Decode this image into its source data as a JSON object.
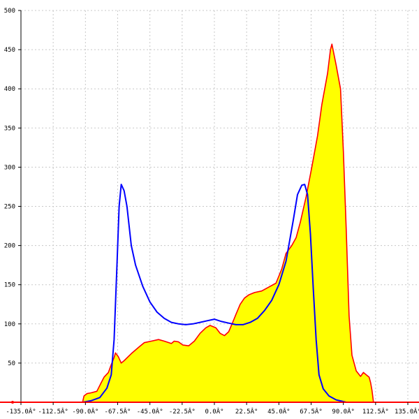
{
  "chart_data": {
    "type": "area",
    "title": "",
    "xlabel": "",
    "ylabel": "",
    "xlim": [
      -135,
      135
    ],
    "ylim": [
      0,
      500
    ],
    "grid": true,
    "x_ticks": [
      -135,
      -112.5,
      -90,
      -67.5,
      -45,
      -22.5,
      0,
      22.5,
      45,
      67.5,
      90,
      112.5,
      135
    ],
    "x_tick_labels": [
      "-135.0Â°",
      "-112.5Â°",
      "-90.0Â°",
      "-67.5Â°",
      "-45.0Â°",
      "-22.5Â°",
      "0.0Â°",
      "22.5Â°",
      "45.0Â°",
      "67.5Â°",
      "90.0Â°",
      "112.5Â°",
      "135.0Â°"
    ],
    "y_ticks": [
      50,
      100,
      150,
      200,
      250,
      300,
      350,
      400,
      450,
      500
    ],
    "y_tick_labels": [
      "50",
      "100",
      "150",
      "200",
      "250",
      "300",
      "350",
      "400",
      "450",
      "500"
    ],
    "series": [
      {
        "style": "filled-area",
        "line_color": "#ff0000",
        "fill_color": "#ffff00",
        "points": [
          [
            -92,
            0
          ],
          [
            -91,
            8
          ],
          [
            -89,
            11
          ],
          [
            -86,
            12
          ],
          [
            -82,
            14
          ],
          [
            -79,
            25
          ],
          [
            -77,
            32
          ],
          [
            -74,
            38
          ],
          [
            -72,
            48
          ],
          [
            -70,
            57
          ],
          [
            -69,
            63
          ],
          [
            -67,
            58
          ],
          [
            -65,
            50
          ],
          [
            -63,
            53
          ],
          [
            -58,
            62
          ],
          [
            -53,
            70
          ],
          [
            -49,
            76
          ],
          [
            -44,
            78
          ],
          [
            -39,
            80
          ],
          [
            -35,
            78
          ],
          [
            -30,
            75
          ],
          [
            -28,
            78
          ],
          [
            -25,
            77
          ],
          [
            -22,
            73
          ],
          [
            -18,
            72
          ],
          [
            -14,
            78
          ],
          [
            -10,
            88
          ],
          [
            -6,
            95
          ],
          [
            -3,
            98
          ],
          [
            1,
            95
          ],
          [
            4,
            88
          ],
          [
            7,
            85
          ],
          [
            10,
            90
          ],
          [
            13,
            103
          ],
          [
            15,
            112
          ],
          [
            18,
            125
          ],
          [
            21,
            133
          ],
          [
            24,
            137
          ],
          [
            28,
            140
          ],
          [
            33,
            142
          ],
          [
            37,
            146
          ],
          [
            43,
            152
          ],
          [
            47,
            170
          ],
          [
            50,
            190
          ],
          [
            54,
            200
          ],
          [
            57,
            210
          ],
          [
            60,
            230
          ],
          [
            64,
            262
          ],
          [
            68,
            300
          ],
          [
            72,
            340
          ],
          [
            75,
            380
          ],
          [
            79,
            420
          ],
          [
            81,
            450
          ],
          [
            82,
            457
          ],
          [
            85,
            430
          ],
          [
            88,
            400
          ],
          [
            90,
            320
          ],
          [
            92,
            220
          ],
          [
            94,
            110
          ],
          [
            96,
            60
          ],
          [
            99,
            40
          ],
          [
            102,
            33
          ],
          [
            104,
            38
          ],
          [
            106,
            35
          ],
          [
            108,
            32
          ],
          [
            109,
            25
          ],
          [
            110,
            15
          ],
          [
            111,
            0
          ]
        ]
      },
      {
        "style": "line",
        "line_color": "#0000ff",
        "points": [
          [
            -92,
            0
          ],
          [
            -86,
            2
          ],
          [
            -80,
            6
          ],
          [
            -75,
            18
          ],
          [
            -72,
            35
          ],
          [
            -70,
            80
          ],
          [
            -68,
            175
          ],
          [
            -66.5,
            250
          ],
          [
            -65,
            278
          ],
          [
            -63,
            270
          ],
          [
            -61,
            250
          ],
          [
            -58,
            200
          ],
          [
            -55,
            175
          ],
          [
            -50,
            148
          ],
          [
            -45,
            128
          ],
          [
            -40,
            115
          ],
          [
            -35,
            107
          ],
          [
            -30,
            102
          ],
          [
            -25,
            100
          ],
          [
            -20,
            99
          ],
          [
            -15,
            100
          ],
          [
            -10,
            102
          ],
          [
            -5,
            104
          ],
          [
            0,
            106
          ],
          [
            5,
            103
          ],
          [
            10,
            101
          ],
          [
            15,
            99
          ],
          [
            20,
            99
          ],
          [
            25,
            102
          ],
          [
            30,
            107
          ],
          [
            35,
            117
          ],
          [
            40,
            130
          ],
          [
            45,
            150
          ],
          [
            50,
            180
          ],
          [
            55,
            232
          ],
          [
            58,
            265
          ],
          [
            61,
            277
          ],
          [
            63,
            278
          ],
          [
            65,
            265
          ],
          [
            67,
            215
          ],
          [
            69,
            145
          ],
          [
            71,
            80
          ],
          [
            73,
            35
          ],
          [
            76,
            17
          ],
          [
            80,
            8
          ],
          [
            85,
            3
          ],
          [
            92,
            0
          ],
          [
            111,
            0
          ]
        ]
      }
    ]
  }
}
